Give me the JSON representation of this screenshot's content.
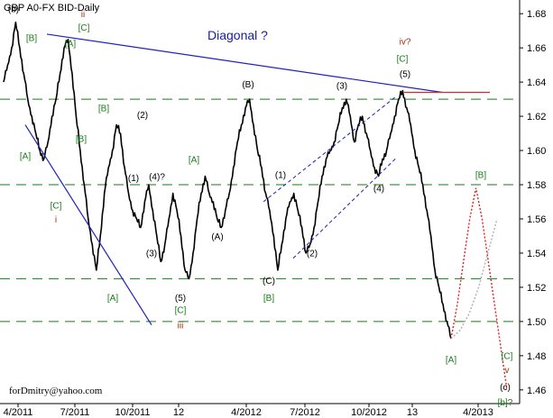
{
  "chart_data": {
    "type": "line",
    "title": "GBP A0-FX BID-Daily",
    "annotation": "Diagonal ?",
    "credit": "forDmitry@yahoo.com",
    "x_ticks": [
      "4/2011",
      "7/2011",
      "10/2011",
      "12",
      "4/2012",
      "7/2012",
      "10/2012",
      "13",
      "4/2013"
    ],
    "y_ticks": [
      "1.68",
      "1.66",
      "1.64",
      "1.62",
      "1.60",
      "1.58",
      "1.56",
      "1.54",
      "1.52",
      "1.50",
      "1.48",
      "1.46"
    ],
    "ylim": [
      1.452,
      1.688
    ],
    "horizontal_levels": [
      1.63,
      1.58,
      1.525,
      1.5
    ],
    "series": [
      {
        "values": [
          1.64,
          1.65,
          1.66,
          1.675,
          1.66,
          1.645,
          1.63,
          1.62,
          1.61,
          1.6,
          1.595,
          1.605,
          1.62,
          1.63,
          1.645,
          1.66,
          1.665,
          1.645,
          1.62,
          1.6,
          1.58,
          1.56,
          1.545,
          1.53,
          1.55,
          1.575,
          1.59,
          1.6,
          1.615,
          1.61,
          1.59,
          1.575,
          1.565,
          1.56,
          1.555,
          1.57,
          1.58,
          1.565,
          1.55,
          1.535,
          1.545,
          1.56,
          1.575,
          1.565,
          1.55,
          1.53,
          1.525,
          1.54,
          1.56,
          1.575,
          1.585,
          1.575,
          1.57,
          1.56,
          1.555,
          1.565,
          1.575,
          1.59,
          1.605,
          1.615,
          1.625,
          1.63,
          1.615,
          1.6,
          1.59,
          1.575,
          1.565,
          1.55,
          1.53,
          1.545,
          1.56,
          1.57,
          1.575,
          1.565,
          1.555,
          1.54,
          1.545,
          1.555,
          1.57,
          1.585,
          1.595,
          1.6,
          1.605,
          1.615,
          1.625,
          1.63,
          1.62,
          1.605,
          1.615,
          1.62,
          1.61,
          1.6,
          1.59,
          1.585,
          1.595,
          1.6,
          1.61,
          1.62,
          1.63,
          1.635,
          1.625,
          1.615,
          1.6,
          1.59,
          1.58,
          1.565,
          1.55,
          1.53,
          1.52,
          1.51,
          1.5,
          1.49
        ]
      },
      {
        "name": "projection-red",
        "values": [
          1.49,
          1.51,
          1.535,
          1.56,
          1.578,
          1.56,
          1.535,
          1.51,
          1.485,
          1.46
        ]
      },
      {
        "name": "projection-grey",
        "values": [
          1.49,
          1.495,
          1.505,
          1.52,
          1.54,
          1.56
        ]
      }
    ],
    "trendlines": [
      {
        "name": "upper-diagonal",
        "color": "#2020c0",
        "values": [
          1.668,
          1.634
        ]
      },
      {
        "name": "lower-diagonal",
        "color": "#2020c0",
        "values": [
          1.615,
          1.498
        ]
      },
      {
        "name": "red-horizontal",
        "color": "#c03030",
        "values": [
          1.634,
          1.634
        ]
      }
    ],
    "wave_labels": [
      {
        "text": "(b)",
        "color": "#000000",
        "y": 1.681
      },
      {
        "text": "ii",
        "color": "#a03010",
        "y": 1.678
      },
      {
        "text": "[C]",
        "color": "#1a7a1a",
        "y": 1.67
      },
      {
        "text": "[B]",
        "color": "#1a7a1a",
        "y": 1.664
      },
      {
        "text": "[A]",
        "color": "#1a7a1a",
        "y": 1.661
      },
      {
        "text": "[B]",
        "color": "#1a7a1a",
        "y": 1.623
      },
      {
        "text": "(2)",
        "color": "#000000",
        "y": 1.619
      },
      {
        "text": "[B]",
        "color": "#1a7a1a",
        "y": 1.605
      },
      {
        "text": "[A]",
        "color": "#1a7a1a",
        "y": 1.595
      },
      {
        "text": "(1)",
        "color": "#000000",
        "y": 1.582
      },
      {
        "text": "(4)?",
        "color": "#000000",
        "y": 1.583
      },
      {
        "text": "[C]",
        "color": "#1a7a1a",
        "y": 1.566
      },
      {
        "text": "i",
        "color": "#a03010",
        "y": 1.558
      },
      {
        "text": "(3)",
        "color": "#000000",
        "y": 1.538
      },
      {
        "text": "[A]",
        "color": "#1a7a1a",
        "y": 1.512
      },
      {
        "text": "(5)",
        "color": "#000000",
        "y": 1.512
      },
      {
        "text": "[C]",
        "color": "#1a7a1a",
        "y": 1.505
      },
      {
        "text": "iii",
        "color": "#a03010",
        "y": 1.496
      },
      {
        "text": "[A]",
        "color": "#1a7a1a",
        "y": 1.593
      },
      {
        "text": "(A)",
        "color": "#000000",
        "y": 1.548
      },
      {
        "text": "(B)",
        "color": "#000000",
        "y": 1.637
      },
      {
        "text": "(C)",
        "color": "#000000",
        "y": 1.522
      },
      {
        "text": "[B]",
        "color": "#1a7a1a",
        "y": 1.512
      },
      {
        "text": "(1)",
        "color": "#000000",
        "y": 1.584
      },
      {
        "text": "(2)",
        "color": "#000000",
        "y": 1.538
      },
      {
        "text": "(3)",
        "color": "#000000",
        "y": 1.636
      },
      {
        "text": "(4)",
        "color": "#000000",
        "y": 1.576
      },
      {
        "text": "(5)",
        "color": "#000000",
        "y": 1.643
      },
      {
        "text": "[C]",
        "color": "#1a7a1a",
        "y": 1.652
      },
      {
        "text": "iv?",
        "color": "#a03010",
        "y": 1.662
      },
      {
        "text": "[B]",
        "color": "#1a7a1a",
        "y": 1.584
      },
      {
        "text": "[A]",
        "color": "#1a7a1a",
        "y": 1.476
      },
      {
        "text": "[C]",
        "color": "#1a7a1a",
        "y": 1.478
      },
      {
        "text": "v",
        "color": "#a03010",
        "y": 1.47
      },
      {
        "text": "(c)",
        "color": "#000000",
        "y": 1.46
      },
      {
        "text": "[b]?",
        "color": "#1a7a1a",
        "y": 1.451
      }
    ],
    "colors": {
      "price": "#000000",
      "level_lines": "#1a7a1a",
      "diagonal": "#2020c0",
      "channel": "#2020c0",
      "projection_red": "#e02020",
      "projection_grey": "#b0b0b0"
    }
  }
}
